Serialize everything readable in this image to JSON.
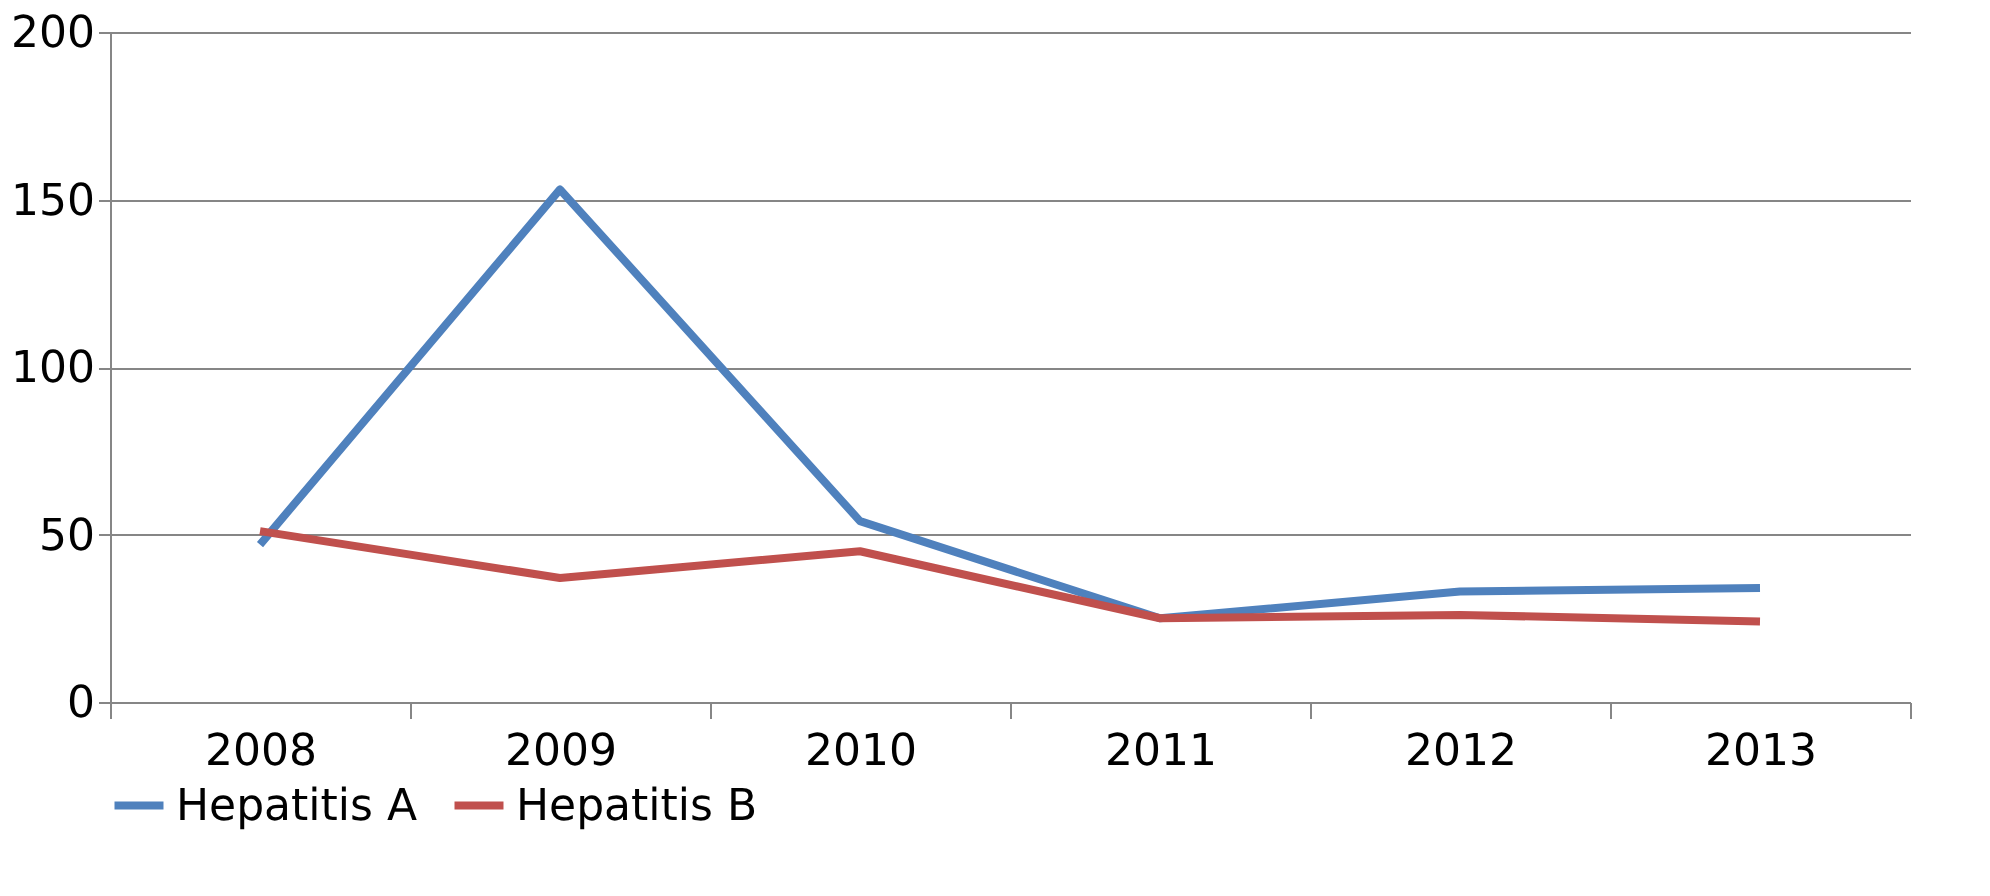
{
  "chart_data": {
    "type": "line",
    "categories": [
      "2008",
      "2009",
      "2010",
      "2011",
      "2012",
      "2013"
    ],
    "series": [
      {
        "name": "Hepatitis A",
        "color": "#4f81bd",
        "values": [
          47,
          153,
          54,
          25,
          33,
          34
        ]
      },
      {
        "name": "Hepatitis B",
        "color": "#c0504d",
        "values": [
          51,
          37,
          45,
          25,
          26,
          24
        ]
      }
    ],
    "ylim": [
      0,
      200
    ],
    "yticks": [
      0,
      50,
      100,
      150,
      200
    ],
    "grid": "y",
    "legend": "bottom",
    "marker": "none",
    "line_style": "solid"
  }
}
